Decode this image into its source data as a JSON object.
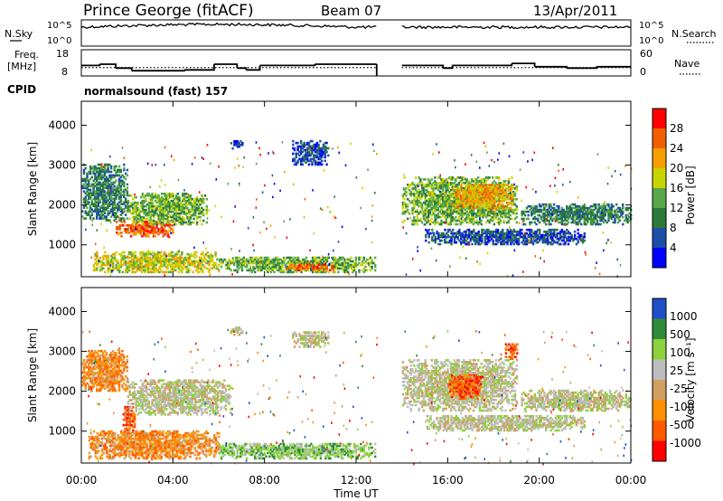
{
  "header": {
    "station": "Prince George (fitACF)",
    "beam": "Beam 07",
    "date": "13/Apr/2011"
  },
  "top_panels": {
    "nsky_label": "N.Sky",
    "nsearch_label": "N.Search",
    "noise_ticks": [
      "10^5",
      "10^0"
    ],
    "freq_label_line1": "Freq.",
    "freq_label_line2": "[MHz]",
    "freq_ticks": [
      "18",
      "8"
    ],
    "nave_label": "Nave",
    "nave_ticks": [
      "60",
      "0"
    ],
    "cpid_label": "CPID",
    "cpid_text": "normalsound (fast) 157"
  },
  "colors": {
    "power_scale": [
      "#0000ff",
      "#1e4fa8",
      "#2b7a3a",
      "#58a84a",
      "#c8d400",
      "#f5a000",
      "#f06000",
      "#ff0000"
    ],
    "velocity_scale": [
      "#ff0000",
      "#ff5a00",
      "#ff9000",
      "#d0a060",
      "#bdbdbd",
      "#8cd23c",
      "#2e8b3a",
      "#2050c8"
    ],
    "ground_scatter": "#bdbdbd"
  },
  "chart_data": [
    {
      "type": "heatmap",
      "name": "power",
      "ylabel": "Slant Range [km]",
      "yticks": [
        "1000",
        "2000",
        "3000",
        "4000"
      ],
      "ylim": [
        200,
        4600
      ],
      "xlim": [
        "00:00",
        "24:00"
      ],
      "data_gap_ut": [
        12.9,
        14.0
      ],
      "colorbar_label": "Power [dB]",
      "colorbar_ticks": [
        "28",
        "24",
        "20",
        "16",
        "12",
        "8",
        "4"
      ],
      "colorbar_range": [
        0,
        30
      ],
      "regions": [
        {
          "t": [
            0.0,
            2.0
          ],
          "r": [
            1600,
            3000
          ],
          "level": 2
        },
        {
          "t": [
            1.5,
            4.0
          ],
          "r": [
            1200,
            1600
          ],
          "level": 6
        },
        {
          "t": [
            2.0,
            5.5
          ],
          "r": [
            1500,
            2300
          ],
          "level": 3
        },
        {
          "t": [
            0.5,
            6.0
          ],
          "r": [
            300,
            800
          ],
          "level": 4
        },
        {
          "t": [
            6.0,
            12.8
          ],
          "r": [
            300,
            700
          ],
          "level": 3
        },
        {
          "t": [
            9.0,
            11.0
          ],
          "r": [
            350,
            500
          ],
          "level": 6
        },
        {
          "t": [
            6.5,
            7.0
          ],
          "r": [
            3400,
            3600
          ],
          "level": 1
        },
        {
          "t": [
            9.2,
            10.8
          ],
          "r": [
            3000,
            3600
          ],
          "level": 1
        },
        {
          "t": [
            14.0,
            19.0
          ],
          "r": [
            1500,
            2700
          ],
          "level": 3
        },
        {
          "t": [
            16.2,
            18.8
          ],
          "r": [
            1900,
            2500
          ],
          "level": 5
        },
        {
          "t": [
            19.2,
            24.0
          ],
          "r": [
            1500,
            2000
          ],
          "level": 2
        },
        {
          "t": [
            15.0,
            22.0
          ],
          "r": [
            1000,
            1400
          ],
          "level": 1
        }
      ]
    },
    {
      "type": "heatmap",
      "name": "velocity",
      "ylabel": "Slant Range [km]",
      "yticks": [
        "1000",
        "2000",
        "3000",
        "4000"
      ],
      "ylim": [
        200,
        4600
      ],
      "xlim": [
        "00:00",
        "24:00"
      ],
      "data_gap_ut": [
        12.9,
        14.0
      ],
      "colorbar_label": "Velocity [m s⁻¹]",
      "colorbar_ticks": [
        "1000",
        "500",
        "100",
        "25",
        "-25",
        "-100",
        "-500",
        "-1000"
      ],
      "regions": [
        {
          "t": [
            0.0,
            2.0
          ],
          "r": [
            2000,
            3000
          ],
          "level": 2
        },
        {
          "t": [
            1.8,
            2.3
          ],
          "r": [
            1000,
            1600
          ],
          "level": 1
        },
        {
          "t": [
            0.3,
            6.0
          ],
          "r": [
            300,
            1000
          ],
          "level": 2
        },
        {
          "t": [
            2.0,
            6.5
          ],
          "r": [
            1400,
            2300
          ],
          "level": 4
        },
        {
          "t": [
            6.0,
            12.8
          ],
          "r": [
            300,
            700
          ],
          "level": 5
        },
        {
          "t": [
            6.5,
            7.0
          ],
          "r": [
            3400,
            3600
          ],
          "level": 4
        },
        {
          "t": [
            9.2,
            10.8
          ],
          "r": [
            3100,
            3500
          ],
          "level": 4
        },
        {
          "t": [
            14.0,
            19.0
          ],
          "r": [
            1500,
            2800
          ],
          "level": 4
        },
        {
          "t": [
            16.0,
            17.5
          ],
          "r": [
            1800,
            2400
          ],
          "level": 1
        },
        {
          "t": [
            18.5,
            19.0
          ],
          "r": [
            2800,
            3200
          ],
          "level": 1
        },
        {
          "t": [
            19.2,
            24.0
          ],
          "r": [
            1500,
            2000
          ],
          "level": 4
        },
        {
          "t": [
            15.0,
            22.0
          ],
          "r": [
            1000,
            1400
          ],
          "level": 4
        }
      ]
    }
  ],
  "xaxis": {
    "ticks": [
      "00:00",
      "04:00",
      "08:00",
      "12:00",
      "16:00",
      "20:00",
      "00:00"
    ],
    "label": "Time UT"
  }
}
